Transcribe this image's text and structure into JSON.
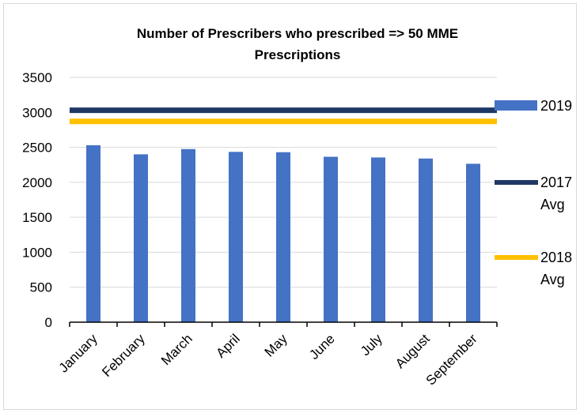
{
  "chart_data": {
    "type": "bar",
    "title_lines": [
      "Number of Prescribers  who prescribed => 50 MME",
      "Prescriptions"
    ],
    "categories": [
      "January",
      "February",
      "March",
      "April",
      "May",
      "June",
      "July",
      "August",
      "September"
    ],
    "series": [
      {
        "name": "2019",
        "type": "bar",
        "color": "#4472C4",
        "values": [
          2530,
          2400,
          2475,
          2435,
          2430,
          2365,
          2355,
          2340,
          2265
        ]
      }
    ],
    "reference_lines": [
      {
        "name_lines": [
          "2017",
          "Avg"
        ],
        "value": 3030,
        "color": "#203864"
      },
      {
        "name_lines": [
          "2018",
          "Avg"
        ],
        "value": 2870,
        "color": "#FFC000"
      }
    ],
    "ylim": [
      0,
      3500
    ],
    "yticks": [
      0,
      500,
      1000,
      1500,
      2000,
      2500,
      3000,
      3500
    ],
    "grid": true,
    "legend": "right"
  }
}
